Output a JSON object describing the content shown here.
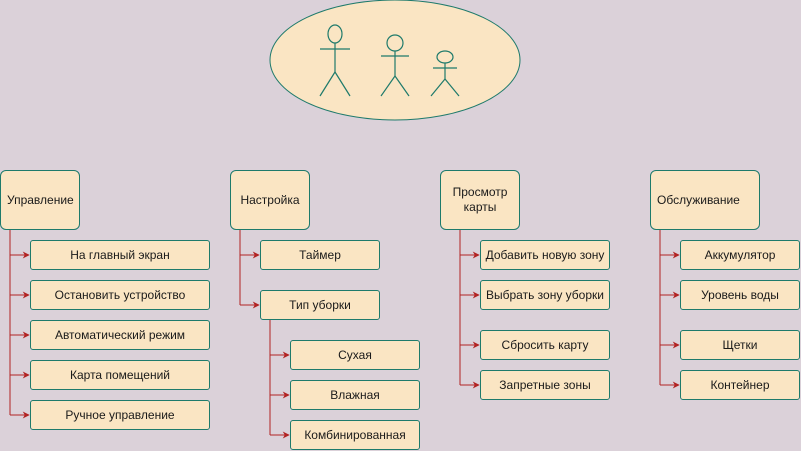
{
  "colors": {
    "background": "#dbd1d9",
    "box_fill": "#fae5c3",
    "box_stroke": "#1e7a6b",
    "connector": "#b22222",
    "actor": "#1e7a6b"
  },
  "actors": {
    "count": 3,
    "icon": "stick-figure-icon"
  },
  "categories": [
    {
      "id": "upravlenie",
      "label": "Управление",
      "items": [
        "На главный экран",
        "Остановить устройство",
        "Автоматический режим",
        "Карта помещений",
        "Ручное управление"
      ]
    },
    {
      "id": "nastroyka",
      "label": "Настройка",
      "items": [
        "Таймер",
        "Тип уборки"
      ],
      "sub_items": [
        "Сухая",
        "Влажная",
        "Комбинированная"
      ]
    },
    {
      "id": "prosmotr",
      "label": "Просмотр\nкарты",
      "items": [
        "Добавить новую зону",
        "Выбрать зону уборки",
        "Сбросить карту",
        "Запретные зоны"
      ]
    },
    {
      "id": "obsluzhivanie",
      "label": "Обслуживание",
      "items": [
        "Аккумулятор",
        "Уровень воды",
        "Щетки",
        "Контейнер"
      ]
    }
  ]
}
